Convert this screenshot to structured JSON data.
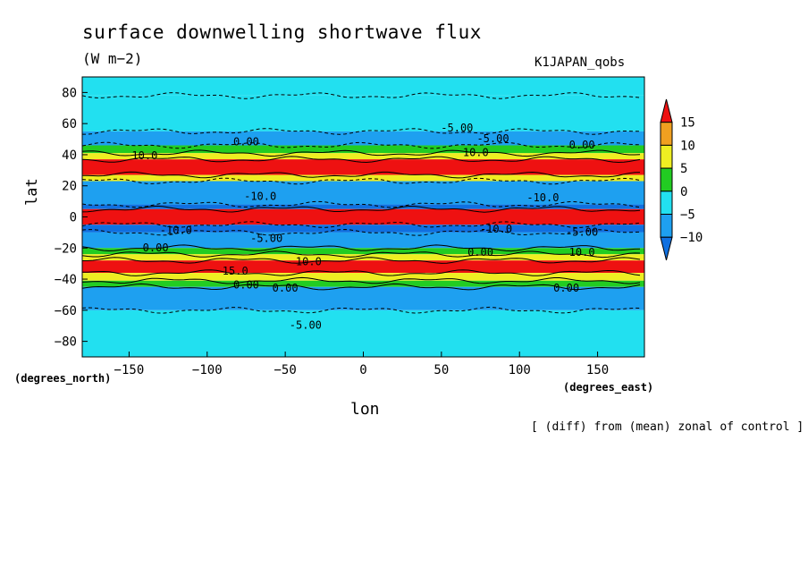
{
  "title": "surface downwelling shortwave flux",
  "units": "(W m−2)",
  "dataset": "K1JAPAN_qobs",
  "footnote": "[ (diff) from (mean) zonal of control ]",
  "chart_data": {
    "type": "heatmap",
    "title": "surface downwelling shortwave flux",
    "xlabel": "lon",
    "ylabel": "lat",
    "xunits": "(degrees_east)",
    "yunits": "(degrees_north)",
    "xlim": [
      -180,
      180
    ],
    "ylim": [
      -90,
      90
    ],
    "x_ticks": [
      -150,
      -100,
      -50,
      0,
      50,
      100,
      150
    ],
    "y_ticks": [
      80,
      60,
      40,
      20,
      0,
      -20,
      -40,
      -60,
      -80
    ],
    "x_tick_labels": [
      "−150",
      "−100",
      "−50",
      "0",
      "50",
      "100",
      "150"
    ],
    "y_tick_labels": [
      "80",
      "60",
      "40",
      "20",
      "0",
      "−20",
      "−40",
      "−60",
      "−80"
    ],
    "colorbar": {
      "levels": [
        15,
        10,
        5,
        0,
        -5,
        -10
      ],
      "level_labels": [
        "15",
        "10",
        "5",
        "0",
        "−5",
        "−10"
      ],
      "colors": [
        "#ee1111",
        "#f0a020",
        "#eeee22",
        "#22cc22",
        "#22e0f0",
        "#1ea0f0",
        "#1070e0"
      ]
    },
    "zonal_bands": [
      {
        "lat_range": [
          78,
          90
        ],
        "value": -2
      },
      {
        "lat_range": [
          55,
          78
        ],
        "value": -2
      },
      {
        "lat_range": [
          46,
          55
        ],
        "value": -7
      },
      {
        "lat_range": [
          41,
          46
        ],
        "value": 2
      },
      {
        "lat_range": [
          37,
          41
        ],
        "value": 7
      },
      {
        "lat_range": [
          27,
          37
        ],
        "value": 16
      },
      {
        "lat_range": [
          23,
          27
        ],
        "value": 7
      },
      {
        "lat_range": [
          8,
          23
        ],
        "value": -7
      },
      {
        "lat_range": [
          5,
          8
        ],
        "value": -12
      },
      {
        "lat_range": [
          -5,
          5
        ],
        "value": 16
      },
      {
        "lat_range": [
          -10,
          -5
        ],
        "value": -12
      },
      {
        "lat_range": [
          -20,
          -10
        ],
        "value": -7
      },
      {
        "lat_range": [
          -24,
          -20
        ],
        "value": 2
      },
      {
        "lat_range": [
          -28,
          -24
        ],
        "value": 7
      },
      {
        "lat_range": [
          -36,
          -28
        ],
        "value": 16
      },
      {
        "lat_range": [
          -41,
          -36
        ],
        "value": 7
      },
      {
        "lat_range": [
          -45,
          -41
        ],
        "value": 2
      },
      {
        "lat_range": [
          -60,
          -45
        ],
        "value": -7
      },
      {
        "lat_range": [
          -90,
          -60
        ],
        "value": -2
      }
    ],
    "contour_labels": [
      {
        "text": "-5.00",
        "lon": 60,
        "lat": 55
      },
      {
        "text": "-5.00",
        "lon": 83,
        "lat": 48
      },
      {
        "text": "10.0",
        "lon": -140,
        "lat": 37
      },
      {
        "text": "10.0",
        "lon": 72,
        "lat": 39
      },
      {
        "text": "0.00",
        "lon": -75,
        "lat": 46
      },
      {
        "text": "0.00",
        "lon": 140,
        "lat": 44
      },
      {
        "text": "-10.0",
        "lon": -66,
        "lat": 11
      },
      {
        "text": "-10.0",
        "lon": 115,
        "lat": 10
      },
      {
        "text": "-10.0",
        "lon": -120,
        "lat": -11
      },
      {
        "text": "-10.0",
        "lon": 85,
        "lat": -10
      },
      {
        "text": "-5.00",
        "lon": -62,
        "lat": -16
      },
      {
        "text": "-5.00",
        "lon": 140,
        "lat": -12
      },
      {
        "text": "0.00",
        "lon": -133,
        "lat": -22
      },
      {
        "text": "0.00",
        "lon": 75,
        "lat": -25
      },
      {
        "text": "10.0",
        "lon": -35,
        "lat": -31
      },
      {
        "text": "10.0",
        "lon": 140,
        "lat": -25
      },
      {
        "text": "15.0",
        "lon": -82,
        "lat": -37
      },
      {
        "text": "0.00",
        "lon": -75,
        "lat": -46
      },
      {
        "text": "0.00",
        "lon": -50,
        "lat": -48
      },
      {
        "text": "0.00",
        "lon": 130,
        "lat": -48
      },
      {
        "text": "-5.00",
        "lon": -37,
        "lat": -72
      }
    ]
  }
}
